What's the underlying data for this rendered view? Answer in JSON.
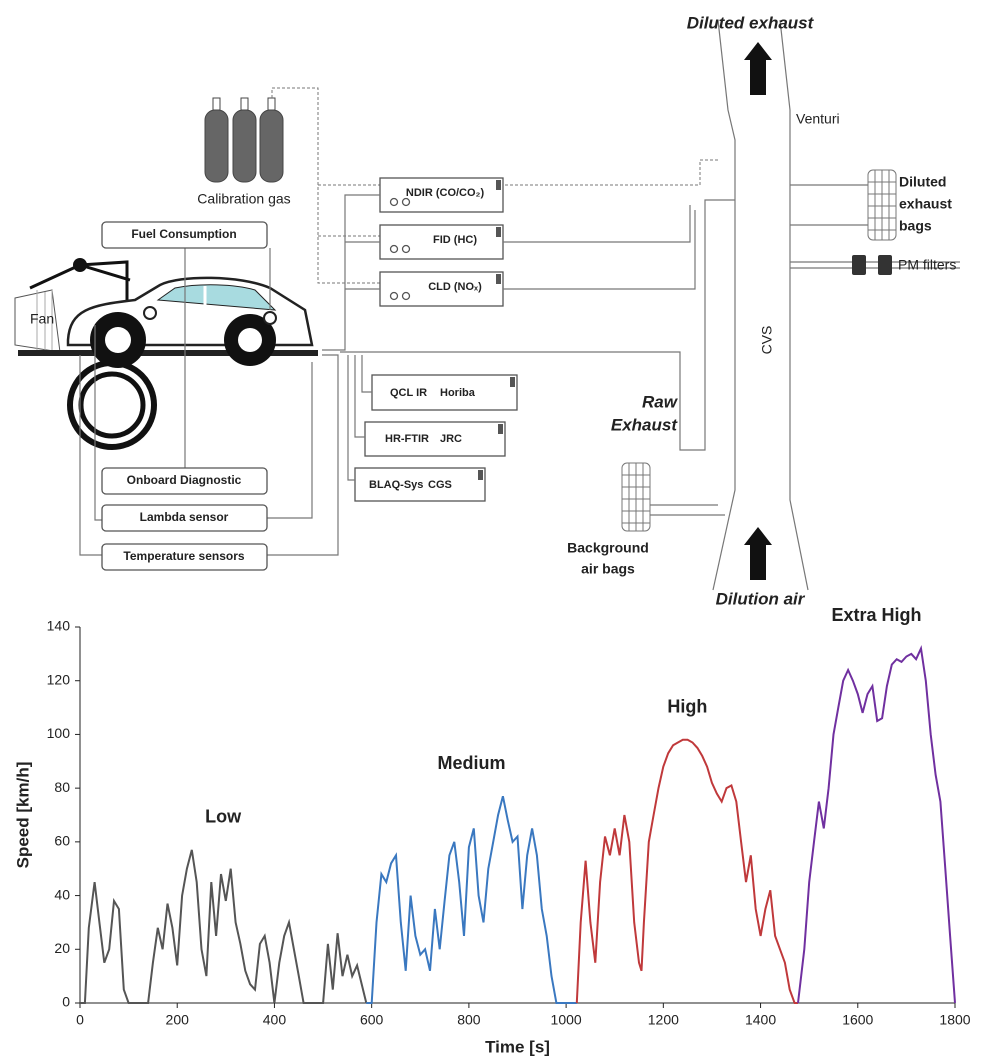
{
  "diagram": {
    "diluted_exhaust": "Diluted exhaust",
    "venturi": "Venturi",
    "calibration_gas": "Calibration gas",
    "ndir": "NDIR (CO/CO₂)",
    "fid": "FID (HC)",
    "cld": "CLD (NOₓ)",
    "diluted_bags": [
      "Diluted",
      "exhaust",
      "bags"
    ],
    "pm_filters": "PM filters",
    "fuel_consumption": "Fuel Consumption",
    "fan": "Fan",
    "cvs": "CVS",
    "qcl": [
      "QCL IR",
      "Horiba"
    ],
    "ftir": [
      "HR-FTIR",
      "JRC"
    ],
    "blaq": [
      "BLAQ-Sys",
      "CGS"
    ],
    "raw_exhaust": [
      "Raw",
      "Exhaust"
    ],
    "background_bags": [
      "Background",
      "air bags"
    ],
    "onboard": "Onboard Diagnostic",
    "lambda": "Lambda sensor",
    "temperature": "Temperature sensors",
    "dilution_air": "Dilution air"
  },
  "chart_data": {
    "type": "line",
    "x_label": "Time [s]",
    "y_label": "Speed [km/h]",
    "xlim": [
      0,
      1800
    ],
    "ylim": [
      0,
      140
    ],
    "xticks": [
      0,
      200,
      400,
      600,
      800,
      1000,
      1200,
      1400,
      1600,
      1800
    ],
    "yticks": [
      0,
      20,
      40,
      60,
      80,
      100,
      120,
      140
    ],
    "series": [
      {
        "name": "Low",
        "color": "#555555",
        "x": [
          0,
          10,
          18,
          30,
          40,
          50,
          60,
          70,
          80,
          90,
          100,
          110,
          130,
          140,
          150,
          160,
          170,
          180,
          190,
          200,
          210,
          220,
          230,
          240,
          250,
          260,
          270,
          280,
          290,
          300,
          310,
          320,
          330,
          340,
          350,
          360,
          370,
          380,
          390,
          400,
          410,
          420,
          430,
          440,
          450,
          460,
          480,
          500,
          510,
          520,
          530,
          540,
          550,
          560,
          570,
          589
        ],
        "values": [
          0,
          0,
          28,
          45,
          30,
          15,
          20,
          38,
          35,
          5,
          0,
          0,
          0,
          0,
          15,
          28,
          20,
          37,
          28,
          14,
          40,
          50,
          57,
          45,
          20,
          10,
          45,
          25,
          48,
          38,
          50,
          30,
          22,
          12,
          7,
          5,
          22,
          25,
          15,
          0,
          15,
          25,
          30,
          20,
          10,
          0,
          0,
          0,
          22,
          5,
          26,
          10,
          18,
          10,
          14,
          0
        ]
      },
      {
        "name": "Medium",
        "color": "#3a78c0",
        "x": [
          589,
          600,
          610,
          620,
          630,
          640,
          650,
          660,
          670,
          680,
          690,
          700,
          710,
          720,
          730,
          740,
          750,
          760,
          770,
          780,
          790,
          800,
          810,
          820,
          830,
          840,
          850,
          860,
          870,
          880,
          890,
          900,
          910,
          920,
          930,
          940,
          950,
          960,
          970,
          980,
          1022
        ],
        "values": [
          0,
          0,
          30,
          48,
          45,
          52,
          55,
          30,
          12,
          40,
          25,
          18,
          20,
          12,
          35,
          20,
          38,
          55,
          60,
          45,
          25,
          58,
          65,
          40,
          30,
          50,
          60,
          70,
          77,
          68,
          60,
          62,
          35,
          55,
          65,
          55,
          35,
          25,
          10,
          0,
          0
        ]
      },
      {
        "name": "High",
        "color": "#c0393b",
        "x": [
          1022,
          1030,
          1040,
          1050,
          1060,
          1070,
          1080,
          1090,
          1100,
          1110,
          1120,
          1130,
          1140,
          1150,
          1155,
          1160,
          1170,
          1180,
          1190,
          1200,
          1210,
          1220,
          1230,
          1240,
          1250,
          1260,
          1270,
          1280,
          1290,
          1300,
          1310,
          1320,
          1330,
          1340,
          1350,
          1360,
          1370,
          1380,
          1390,
          1400,
          1410,
          1420,
          1430,
          1440,
          1450,
          1460,
          1470,
          1477
        ],
        "values": [
          0,
          30,
          53,
          30,
          15,
          45,
          62,
          55,
          65,
          55,
          70,
          60,
          30,
          15,
          12,
          30,
          60,
          70,
          80,
          88,
          93,
          96,
          97,
          98,
          98,
          97,
          95,
          92,
          88,
          82,
          78,
          75,
          80,
          81,
          75,
          60,
          45,
          55,
          35,
          25,
          35,
          42,
          25,
          20,
          15,
          5,
          0,
          0
        ]
      },
      {
        "name": "Extra High",
        "color": "#7030a0",
        "x": [
          1477,
          1490,
          1500,
          1510,
          1520,
          1530,
          1540,
          1550,
          1560,
          1570,
          1580,
          1590,
          1600,
          1610,
          1620,
          1630,
          1640,
          1650,
          1660,
          1670,
          1680,
          1690,
          1700,
          1710,
          1720,
          1730,
          1740,
          1750,
          1760,
          1770,
          1780,
          1790,
          1800
        ],
        "values": [
          0,
          20,
          45,
          60,
          75,
          65,
          80,
          100,
          110,
          120,
          124,
          120,
          115,
          108,
          115,
          118,
          105,
          106,
          118,
          126,
          128,
          127,
          129,
          130,
          128,
          132,
          120,
          100,
          85,
          75,
          50,
          25,
          0
        ]
      }
    ]
  }
}
